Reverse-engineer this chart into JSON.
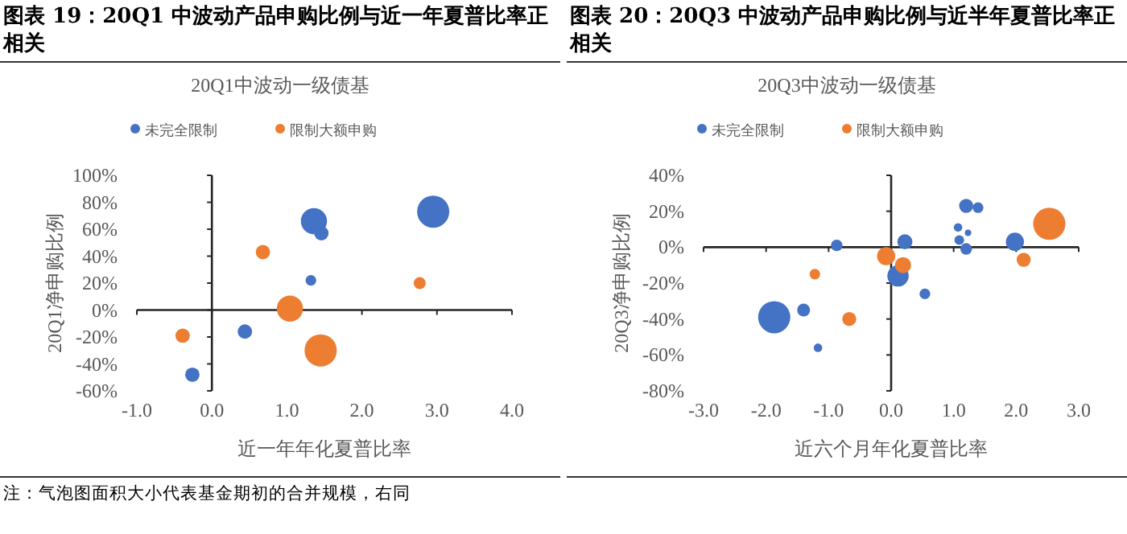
{
  "chart_data": [
    {
      "type": "bubble",
      "title": "图表 19：20Q1 中波动产品申购比例与近一年夏普比率正相关",
      "subtitle": "20Q1中波动一级债基",
      "xlabel": "近一年年化夏普比率",
      "ylabel": "20Q1净申购比例",
      "xlim": [
        -1,
        4
      ],
      "xticks": [
        {
          "value": -1,
          "label": "-1.0"
        },
        {
          "value": 0,
          "label": "0.0"
        },
        {
          "value": 1,
          "label": "1.0"
        },
        {
          "value": 2,
          "label": "2.0"
        },
        {
          "value": 3,
          "label": "3.0"
        },
        {
          "value": 4,
          "label": "4.0"
        }
      ],
      "ylim": [
        -60,
        100
      ],
      "yticks": [
        {
          "value": -60,
          "label": "-60%"
        },
        {
          "value": -40,
          "label": "-40%"
        },
        {
          "value": -20,
          "label": "-20%"
        },
        {
          "value": 0,
          "label": "0%"
        },
        {
          "value": 20,
          "label": "20%"
        },
        {
          "value": 40,
          "label": "40%"
        },
        {
          "value": 60,
          "label": "60%"
        },
        {
          "value": 80,
          "label": "80%"
        },
        {
          "value": 100,
          "label": "100%"
        }
      ],
      "legend": "top",
      "annotations": [
        "注：气泡图面积大小代表基金期初的合并规模，右同"
      ],
      "series": [
        {
          "name": "未完全限制",
          "color": "#4472c4",
          "x": [
            1.36,
            1.46,
            2.95,
            1.32,
            0.44,
            -0.26
          ],
          "values": [
            66,
            57,
            73,
            22,
            -16,
            -48
          ],
          "sizes": [
            0.66,
            0.2,
            1,
            0.11,
            0.2,
            0.2
          ]
        },
        {
          "name": "限制大额申购",
          "color": "#ed7d31",
          "x": [
            0.68,
            2.77,
            1.04,
            1.45,
            -0.39
          ],
          "values": [
            43,
            20,
            1,
            -30,
            -19
          ],
          "sizes": [
            0.2,
            0.14,
            0.66,
            1,
            0.2
          ]
        }
      ]
    },
    {
      "type": "bubble",
      "title": "图表 20：20Q3 中波动产品申购比例与近半年夏普比率正相关",
      "subtitle": "20Q3中波动一级债基",
      "xlabel": "近六个月年化夏普比率",
      "ylabel": "20Q3净申购比例",
      "xlim": [
        -3,
        3
      ],
      "xticks": [
        {
          "value": -3,
          "label": "-3.0"
        },
        {
          "value": -2,
          "label": "-2.0"
        },
        {
          "value": -1,
          "label": "-1.0"
        },
        {
          "value": 0,
          "label": "0.0"
        },
        {
          "value": 1,
          "label": "1.0"
        },
        {
          "value": 2,
          "label": "2.0"
        },
        {
          "value": 3,
          "label": "3.0"
        }
      ],
      "ylim": [
        -80,
        40
      ],
      "yticks": [
        {
          "value": -80,
          "label": "-80%"
        },
        {
          "value": -60,
          "label": "-60%"
        },
        {
          "value": -40,
          "label": "-40%"
        },
        {
          "value": -20,
          "label": "-20%"
        },
        {
          "value": 0,
          "label": "0%"
        },
        {
          "value": 20,
          "label": "20%"
        },
        {
          "value": 40,
          "label": "40%"
        }
      ],
      "legend": "top",
      "series": [
        {
          "name": "未完全限制",
          "color": "#4472c4",
          "x": [
            -1.87,
            -1.4,
            -1.17,
            -0.87,
            0.22,
            0.11,
            0.54,
            1.2,
            1.39,
            1.07,
            1.23,
            1.09,
            1.2,
            1.98
          ],
          "values": [
            -39,
            -35,
            -56,
            1,
            3,
            -16,
            -26,
            23,
            22,
            11,
            8,
            4,
            -1,
            3
          ],
          "sizes": [
            1,
            0.16,
            0.07,
            0.13,
            0.22,
            0.44,
            0.11,
            0.19,
            0.11,
            0.07,
            0.04,
            0.09,
            0.13,
            0.32
          ]
        },
        {
          "name": "限制大额申购",
          "color": "#ed7d31",
          "x": [
            2.53,
            2.12,
            -0.08,
            0.19,
            -1.22,
            -0.67
          ],
          "values": [
            13,
            -7,
            -5,
            -10,
            -15,
            -40
          ],
          "sizes": [
            1,
            0.19,
            0.32,
            0.25,
            0.11,
            0.19
          ]
        }
      ]
    }
  ]
}
